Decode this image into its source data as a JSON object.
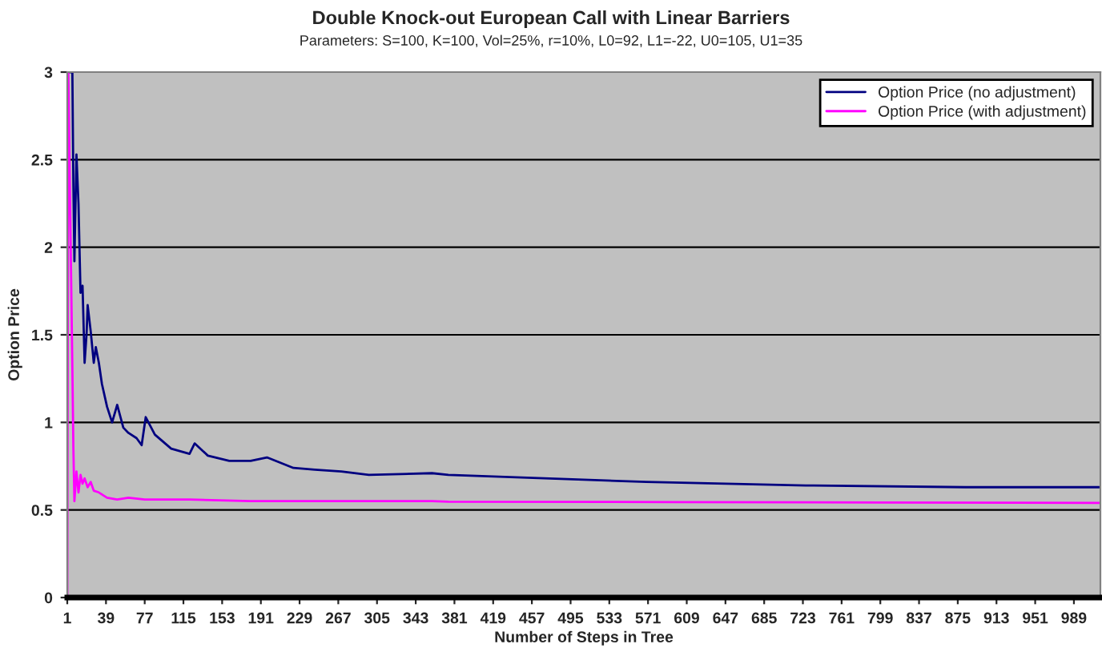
{
  "chart_data": {
    "type": "line",
    "title": "Double Knock-out European Call with Linear Barriers",
    "subtitle": "Parameters: S=100, K=100, Vol=25%, r=10%, L0=92, L1=-22, U0=105, U1=35",
    "xlabel": "Number of Steps in Tree",
    "ylabel": "Option Price",
    "series": [
      {
        "name": "Option Price (no adjustment)",
        "color": "#000080",
        "x": [
          2,
          6,
          7,
          8,
          10,
          12,
          14,
          16,
          18,
          20,
          21,
          24,
          27,
          29,
          32,
          35,
          40,
          45,
          50,
          56,
          61,
          69,
          74,
          78,
          87,
          103,
          121,
          126,
          139,
          160,
          181,
          197,
          223,
          244,
          270,
          297,
          359,
          375,
          569,
          726,
          883,
          1015
        ],
        "values": [
          3,
          3,
          2.35,
          1.92,
          2.53,
          2.25,
          1.74,
          1.78,
          1.34,
          1.51,
          1.67,
          1.52,
          1.34,
          1.43,
          1.34,
          1.22,
          1.09,
          1.0,
          1.1,
          0.97,
          0.94,
          0.91,
          0.87,
          1.03,
          0.93,
          0.85,
          0.82,
          0.88,
          0.81,
          0.78,
          0.78,
          0.8,
          0.74,
          0.73,
          0.72,
          0.7,
          0.71,
          0.7,
          0.66,
          0.64,
          0.63,
          0.63
        ]
      },
      {
        "name": "Option Price (with adjustment)",
        "color": "#ff00ff",
        "x": [
          1,
          2,
          6,
          7,
          8,
          10,
          12,
          14,
          16,
          18,
          21,
          24,
          27,
          32,
          40,
          50,
          61,
          77,
          121,
          181,
          244,
          359,
          375,
          600,
          800,
          1015
        ],
        "values": [
          0,
          3,
          1.31,
          0.85,
          0.55,
          0.72,
          0.6,
          0.7,
          0.65,
          0.68,
          0.63,
          0.66,
          0.61,
          0.6,
          0.57,
          0.56,
          0.57,
          0.56,
          0.56,
          0.55,
          0.55,
          0.55,
          0.547,
          0.545,
          0.543,
          0.54
        ]
      }
    ],
    "xlim": [
      1,
      1015
    ],
    "xticks": [
      1,
      39,
      77,
      115,
      153,
      191,
      229,
      267,
      305,
      343,
      381,
      419,
      457,
      495,
      533,
      571,
      609,
      647,
      685,
      723,
      761,
      799,
      837,
      875,
      913,
      951,
      989
    ],
    "ylim": [
      0,
      3
    ],
    "yticks": [
      0,
      0.5,
      1,
      1.5,
      2,
      2.5,
      3
    ],
    "grid": "y",
    "legend": "top right"
  }
}
